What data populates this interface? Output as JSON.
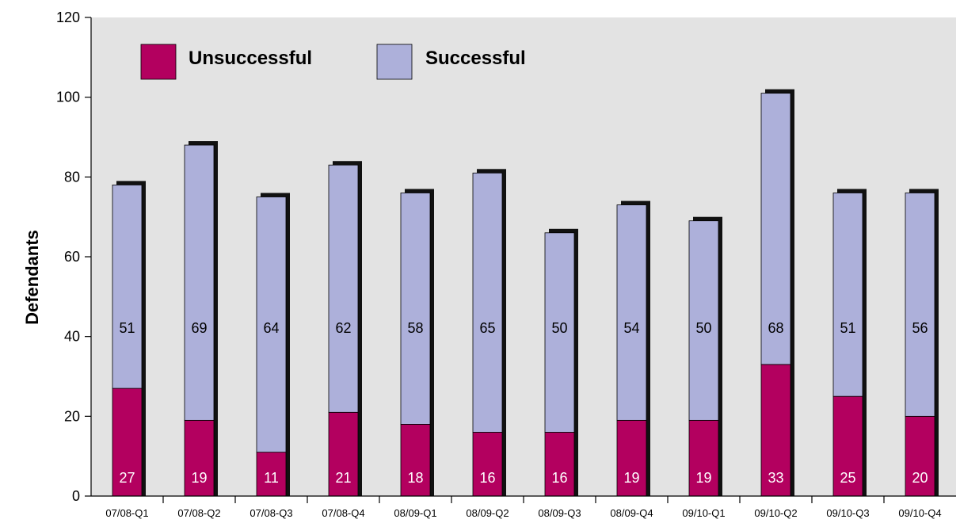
{
  "chart_data": {
    "type": "bar",
    "stacked": true,
    "ylabel": "Defendants",
    "xlabel": "",
    "ylim": [
      0,
      120
    ],
    "yticks": [
      0,
      20,
      40,
      60,
      80,
      100,
      120
    ],
    "grid": false,
    "legend_placement": "top-left",
    "categories": [
      "07/08-Q1",
      "07/08-Q2",
      "07/08-Q3",
      "07/08-Q4",
      "08/09-Q1",
      "08/09-Q2",
      "08/09-Q3",
      "08/09-Q4",
      "09/10-Q1",
      "09/10-Q2",
      "09/10-Q3",
      "09/10-Q4"
    ],
    "series": [
      {
        "name": "Unsuccessful",
        "color": "#b3005f",
        "values": [
          27,
          19,
          11,
          21,
          18,
          16,
          16,
          19,
          19,
          33,
          25,
          20
        ]
      },
      {
        "name": "Successful",
        "color": "#adb0da",
        "values": [
          51,
          69,
          64,
          62,
          58,
          65,
          50,
          54,
          50,
          68,
          51,
          56
        ]
      }
    ],
    "colors": {
      "plot_background": "#e3e3e3",
      "shadow": "#111111"
    }
  }
}
